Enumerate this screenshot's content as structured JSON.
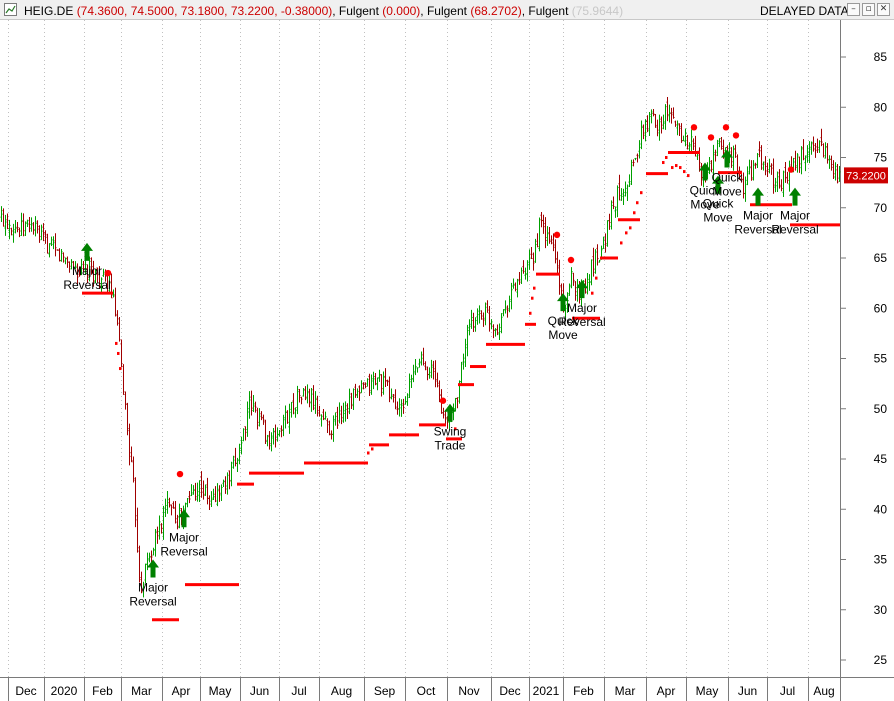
{
  "window": {
    "icon": "chart-window-icon",
    "title_parts": [
      {
        "text": "HEIG.DE ",
        "color": "#000000"
      },
      {
        "text": "(74.3600, 74.5000, 73.1800, 73.2200, -0.38000)",
        "color": "#cc0000"
      },
      {
        "text": ", Fulgent ",
        "color": "#000000"
      },
      {
        "text": "(0.000)",
        "color": "#cc0000"
      },
      {
        "text": ", Fulgent ",
        "color": "#000000"
      },
      {
        "text": "(68.2702)",
        "color": "#cc0000"
      },
      {
        "text": ", Fulgent ",
        "color": "#000000"
      },
      {
        "text": "(75.9644)",
        "color": "#c8c8c8"
      }
    ],
    "status": "DELAYED DATA",
    "buttons": [
      {
        "name": "minimize-button",
        "icon": "minimize-icon",
        "glyph": "–"
      },
      {
        "name": "restore-button",
        "icon": "restore-icon",
        "glyph": "▫"
      },
      {
        "name": "close-button",
        "icon": "close-icon",
        "glyph": "✕"
      }
    ]
  },
  "chart_data": {
    "type": "candlestick",
    "symbol": "HEIG.DE",
    "ylim": [
      22.5,
      87.5
    ],
    "y_ticks": [
      25,
      30,
      35,
      40,
      45,
      50,
      55,
      60,
      65,
      70,
      75,
      80,
      85
    ],
    "x_ticks": [
      "Dec",
      "2020",
      "Feb",
      "Mar",
      "Apr",
      "May",
      "Jun",
      "Jul",
      "Aug",
      "Sep",
      "Oct",
      "Nov",
      "Dec",
      "2021",
      "Feb",
      "Mar",
      "Apr",
      "May",
      "Jun",
      "Jul",
      "Aug"
    ],
    "last_price_label": "73.2200",
    "grid": "vertical dotted",
    "colors": {
      "up": "#00a000",
      "down": "#a00000",
      "stop": "#ff0000",
      "signal": "#008000",
      "last_price_bg": "#cc0000"
    },
    "price_path": [
      [
        0,
        69.0
      ],
      [
        10,
        68.5
      ],
      [
        20,
        67.8
      ],
      [
        30,
        68.5
      ],
      [
        40,
        67.0
      ],
      [
        50,
        66.0
      ],
      [
        60,
        65.2
      ],
      [
        70,
        64.5
      ],
      [
        80,
        63.5
      ],
      [
        90,
        63.8
      ],
      [
        100,
        63.0
      ],
      [
        110,
        62.0
      ],
      [
        116,
        59.0
      ],
      [
        122,
        53.0
      ],
      [
        128,
        47.0
      ],
      [
        134,
        41.0
      ],
      [
        140,
        32.0
      ],
      [
        146,
        34.5
      ],
      [
        152,
        36.0
      ],
      [
        158,
        38.0
      ],
      [
        164,
        39.5
      ],
      [
        170,
        41.5
      ],
      [
        176,
        39.0
      ],
      [
        182,
        39.5
      ],
      [
        188,
        41.0
      ],
      [
        194,
        42.0
      ],
      [
        200,
        42.5
      ],
      [
        210,
        40.5
      ],
      [
        220,
        42.0
      ],
      [
        230,
        43.0
      ],
      [
        240,
        46.5
      ],
      [
        250,
        50.5
      ],
      [
        260,
        49.0
      ],
      [
        270,
        46.5
      ],
      [
        280,
        48.0
      ],
      [
        290,
        50.0
      ],
      [
        300,
        51.5
      ],
      [
        310,
        51.0
      ],
      [
        320,
        49.5
      ],
      [
        330,
        48.0
      ],
      [
        340,
        49.5
      ],
      [
        350,
        51.0
      ],
      [
        360,
        51.5
      ],
      [
        370,
        52.5
      ],
      [
        380,
        53.0
      ],
      [
        390,
        51.5
      ],
      [
        400,
        49.5
      ],
      [
        410,
        52.5
      ],
      [
        420,
        55.0
      ],
      [
        430,
        54.0
      ],
      [
        438,
        52.0
      ],
      [
        444,
        48.5
      ],
      [
        450,
        49.0
      ],
      [
        458,
        52.0
      ],
      [
        466,
        57.0
      ],
      [
        476,
        59.5
      ],
      [
        486,
        59.5
      ],
      [
        496,
        58.0
      ],
      [
        506,
        60.5
      ],
      [
        516,
        62.5
      ],
      [
        526,
        63.5
      ],
      [
        534,
        65.5
      ],
      [
        540,
        68.5
      ],
      [
        546,
        67.0
      ],
      [
        554,
        66.0
      ],
      [
        560,
        61.5
      ],
      [
        566,
        60.0
      ],
      [
        572,
        63.5
      ],
      [
        578,
        61.5
      ],
      [
        586,
        62.5
      ],
      [
        594,
        65.0
      ],
      [
        602,
        66.0
      ],
      [
        610,
        69.5
      ],
      [
        618,
        71.5
      ],
      [
        626,
        72.5
      ],
      [
        634,
        74.5
      ],
      [
        642,
        77.5
      ],
      [
        650,
        79.0
      ],
      [
        658,
        78.5
      ],
      [
        666,
        79.5
      ],
      [
        674,
        78.5
      ],
      [
        684,
        77.0
      ],
      [
        694,
        76.0
      ],
      [
        702,
        73.0
      ],
      [
        710,
        74.0
      ],
      [
        718,
        76.0
      ],
      [
        726,
        76.0
      ],
      [
        734,
        75.0
      ],
      [
        742,
        72.0
      ],
      [
        750,
        73.5
      ],
      [
        758,
        75.0
      ],
      [
        766,
        74.0
      ],
      [
        776,
        72.5
      ],
      [
        786,
        73.0
      ],
      [
        796,
        74.5
      ],
      [
        806,
        75.5
      ],
      [
        816,
        76.5
      ],
      [
        826,
        75.5
      ],
      [
        834,
        74.0
      ],
      [
        840,
        72.5
      ]
    ],
    "volatility": 0.9,
    "stop_segments": [
      {
        "x1": 82,
        "x2": 113,
        "y": 61.5
      },
      {
        "x1": 152,
        "x2": 179,
        "y": 29.0
      },
      {
        "x1": 185,
        "x2": 239,
        "y": 32.5
      },
      {
        "x1": 237,
        "x2": 254,
        "y": 42.5
      },
      {
        "x1": 249,
        "x2": 304,
        "y": 43.6
      },
      {
        "x1": 304,
        "x2": 368,
        "y": 44.6
      },
      {
        "x1": 369,
        "x2": 389,
        "y": 46.4
      },
      {
        "x1": 389,
        "x2": 419,
        "y": 47.4
      },
      {
        "x1": 419,
        "x2": 446,
        "y": 48.4
      },
      {
        "x1": 446,
        "x2": 462,
        "y": 47.0
      },
      {
        "x1": 458,
        "x2": 474,
        "y": 52.4
      },
      {
        "x1": 470,
        "x2": 486,
        "y": 54.2
      },
      {
        "x1": 486,
        "x2": 525,
        "y": 56.4
      },
      {
        "x1": 525,
        "x2": 536,
        "y": 58.4
      },
      {
        "x1": 536,
        "x2": 560,
        "y": 63.4
      },
      {
        "x1": 572,
        "x2": 600,
        "y": 59.0
      },
      {
        "x1": 600,
        "x2": 618,
        "y": 65.0
      },
      {
        "x1": 618,
        "x2": 640,
        "y": 68.8
      },
      {
        "x1": 646,
        "x2": 668,
        "y": 73.4
      },
      {
        "x1": 668,
        "x2": 700,
        "y": 75.5
      },
      {
        "x1": 718,
        "x2": 742,
        "y": 73.5
      },
      {
        "x1": 750,
        "x2": 792,
        "y": 70.3
      },
      {
        "x1": 790,
        "x2": 840,
        "y": 68.3
      }
    ],
    "stop_dots": [
      [
        116,
        56.5
      ],
      [
        118,
        55.5
      ],
      [
        120,
        54.0
      ],
      [
        368,
        45.6
      ],
      [
        372,
        46.0
      ],
      [
        455,
        48.0
      ],
      [
        530,
        59.5
      ],
      [
        532,
        61.0
      ],
      [
        534,
        62.0
      ],
      [
        592,
        61.5
      ],
      [
        596,
        63.0
      ],
      [
        621,
        66.5
      ],
      [
        626,
        67.5
      ],
      [
        630,
        68.0
      ],
      [
        634,
        69.5
      ],
      [
        637,
        70.5
      ],
      [
        641,
        71.5
      ],
      [
        663,
        74.5
      ],
      [
        666,
        75.0
      ],
      [
        672,
        74.0
      ],
      [
        676,
        74.2
      ],
      [
        680,
        74.0
      ],
      [
        684,
        73.6
      ],
      [
        688,
        73.2
      ]
    ],
    "signal_dots": [
      [
        108,
        63.5
      ],
      [
        180,
        43.5
      ],
      [
        443,
        50.8
      ],
      [
        557,
        67.3
      ],
      [
        571,
        64.8
      ],
      [
        694,
        78.0
      ],
      [
        711,
        77.0
      ],
      [
        726,
        78.0
      ],
      [
        736,
        77.2
      ],
      [
        791,
        73.8
      ]
    ],
    "signals": [
      {
        "x": 87,
        "y": 66.5,
        "lines": [
          "Major",
          "Reversal"
        ]
      },
      {
        "x": 153,
        "y": 35.0,
        "lines": [
          "Major",
          "Reversal"
        ]
      },
      {
        "x": 184,
        "y": 40.0,
        "lines": [
          "Major",
          "Reversal"
        ]
      },
      {
        "x": 450,
        "y": 50.5,
        "lines": [
          "Swing",
          "Trade"
        ]
      },
      {
        "x": 563,
        "y": 61.5,
        "lines": [
          "Quick",
          "Move"
        ]
      },
      {
        "x": 582,
        "y": 62.8,
        "lines": [
          "Major",
          "Reversal"
        ]
      },
      {
        "x": 705,
        "y": 74.5,
        "lines": [
          "Quick",
          "Move"
        ]
      },
      {
        "x": 718,
        "y": 73.2,
        "lines": [
          "Quick",
          "Move"
        ]
      },
      {
        "x": 727,
        "y": 75.8,
        "lines": [
          "Quick",
          "Move"
        ]
      },
      {
        "x": 758,
        "y": 72.0,
        "lines": [
          "Major",
          "Reversal"
        ]
      },
      {
        "x": 795,
        "y": 72.0,
        "lines": [
          "Major",
          "Reversal"
        ]
      }
    ]
  }
}
